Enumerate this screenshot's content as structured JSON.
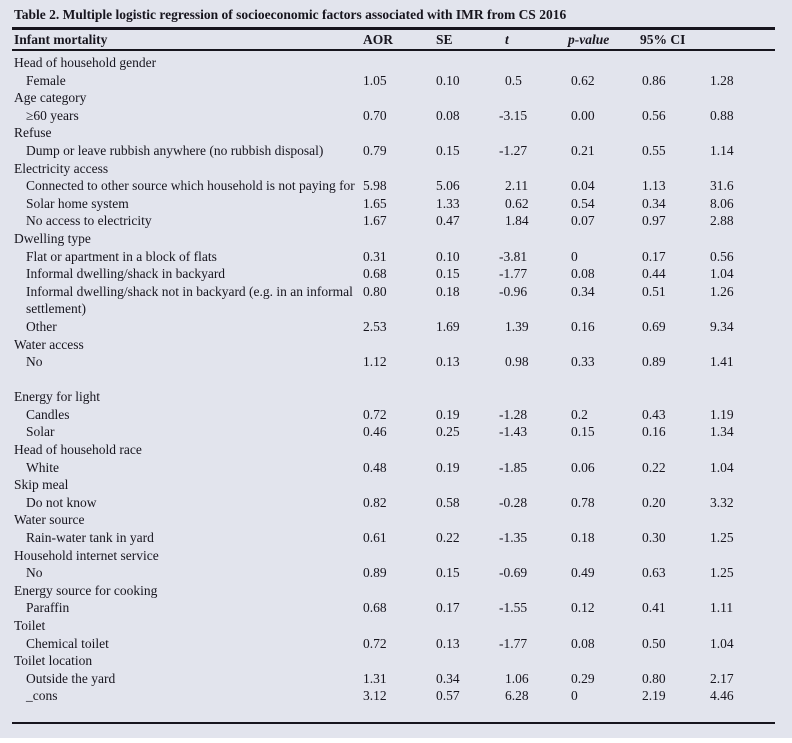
{
  "table": {
    "title": "Table 2. Multiple logistic regression of socioeconomic factors associated with IMR from CS 2016",
    "columns": [
      "Infant mortality",
      "AOR",
      "SE",
      "t",
      "p-value",
      "95% CI"
    ],
    "colors": {
      "background": "#e2e4ed",
      "ink": "#17151e"
    },
    "rows": [
      {
        "label": "Head of household gender",
        "type": "category"
      },
      {
        "label": "Female",
        "type": "item",
        "values": [
          "1.05",
          "0.10",
          "0.5",
          "0.62",
          "0.86",
          "1.28"
        ]
      },
      {
        "label": "Age category",
        "type": "category"
      },
      {
        "label": "≥60 years",
        "type": "item",
        "values": [
          "0.70",
          "0.08",
          "-3.15",
          "0.00",
          "0.56",
          "0.88"
        ]
      },
      {
        "label": "Refuse",
        "type": "category"
      },
      {
        "label": "Dump or leave rubbish anywhere (no rubbish disposal)",
        "type": "item",
        "values": [
          "0.79",
          "0.15",
          "-1.27",
          "0.21",
          "0.55",
          "1.14"
        ]
      },
      {
        "label": "Electricity access",
        "type": "category"
      },
      {
        "label": "Connected to other source which household is not paying for",
        "type": "item",
        "values": [
          "5.98",
          "5.06",
          "2.11",
          "0.04",
          "1.13",
          "31.6"
        ]
      },
      {
        "label": "Solar home system",
        "type": "item",
        "values": [
          "1.65",
          "1.33",
          "0.62",
          "0.54",
          "0.34",
          "8.06"
        ]
      },
      {
        "label": "No access to electricity",
        "type": "item",
        "values": [
          "1.67",
          "0.47",
          "1.84",
          "0.07",
          "0.97",
          "2.88"
        ]
      },
      {
        "label": "Dwelling type",
        "type": "category"
      },
      {
        "label": "Flat or apartment in a block of flats",
        "type": "item",
        "values": [
          "0.31",
          "0.10",
          "-3.81",
          "0",
          "0.17",
          "0.56"
        ]
      },
      {
        "label": "Informal dwelling/shack in backyard",
        "type": "item",
        "values": [
          "0.68",
          "0.15",
          "-1.77",
          "0.08",
          "0.44",
          "1.04"
        ]
      },
      {
        "label": "Informal dwelling/shack not in backyard (e.g. in an informal settlement)",
        "type": "item",
        "wrap": true,
        "values": [
          "0.80",
          "0.18",
          "-0.96",
          "0.34",
          "0.51",
          "1.26"
        ]
      },
      {
        "label": "Other",
        "type": "item",
        "values": [
          "2.53",
          "1.69",
          "1.39",
          "0.16",
          "0.69",
          "9.34"
        ]
      },
      {
        "label": "Water access",
        "type": "category"
      },
      {
        "label": "No",
        "type": "item",
        "values": [
          "1.12",
          "0.13",
          "0.98",
          "0.33",
          "0.89",
          "1.41"
        ]
      },
      {
        "label": "",
        "type": "spacer"
      },
      {
        "label": "Energy for light",
        "type": "category"
      },
      {
        "label": "Candles",
        "type": "item",
        "values": [
          "0.72",
          "0.19",
          "-1.28",
          "0.2",
          "0.43",
          "1.19"
        ]
      },
      {
        "label": "Solar",
        "type": "item",
        "values": [
          "0.46",
          "0.25",
          "-1.43",
          "0.15",
          "0.16",
          "1.34"
        ]
      },
      {
        "label": "Head of household race",
        "type": "category"
      },
      {
        "label": "White",
        "type": "item",
        "values": [
          "0.48",
          "0.19",
          "-1.85",
          "0.06",
          "0.22",
          "1.04"
        ]
      },
      {
        "label": "Skip meal",
        "type": "category"
      },
      {
        "label": "Do not know",
        "type": "item",
        "values": [
          "0.82",
          "0.58",
          "-0.28",
          "0.78",
          "0.20",
          "3.32"
        ]
      },
      {
        "label": "Water source",
        "type": "category"
      },
      {
        "label": "Rain-water tank in yard",
        "type": "item",
        "values": [
          "0.61",
          "0.22",
          "-1.35",
          "0.18",
          "0.30",
          "1.25"
        ]
      },
      {
        "label": "Household internet service",
        "type": "category"
      },
      {
        "label": "No",
        "type": "item",
        "values": [
          "0.89",
          "0.15",
          "-0.69",
          "0.49",
          "0.63",
          "1.25"
        ]
      },
      {
        "label": "Energy source for cooking",
        "type": "category"
      },
      {
        "label": "Paraffin",
        "type": "item",
        "values": [
          "0.68",
          "0.17",
          "-1.55",
          "0.12",
          "0.41",
          "1.11"
        ]
      },
      {
        "label": "Toilet",
        "type": "category"
      },
      {
        "label": "Chemical toilet",
        "type": "item",
        "values": [
          "0.72",
          "0.13",
          "-1.77",
          "0.08",
          "0.50",
          "1.04"
        ]
      },
      {
        "label": "Toilet location",
        "type": "category"
      },
      {
        "label": "Outside the yard",
        "type": "item",
        "values": [
          "1.31",
          "0.34",
          "1.06",
          "0.29",
          "0.80",
          "2.17"
        ]
      },
      {
        "label": "_cons",
        "type": "item",
        "values": [
          "3.12",
          "0.57",
          "6.28",
          "0",
          "2.19",
          "4.46"
        ]
      }
    ]
  }
}
